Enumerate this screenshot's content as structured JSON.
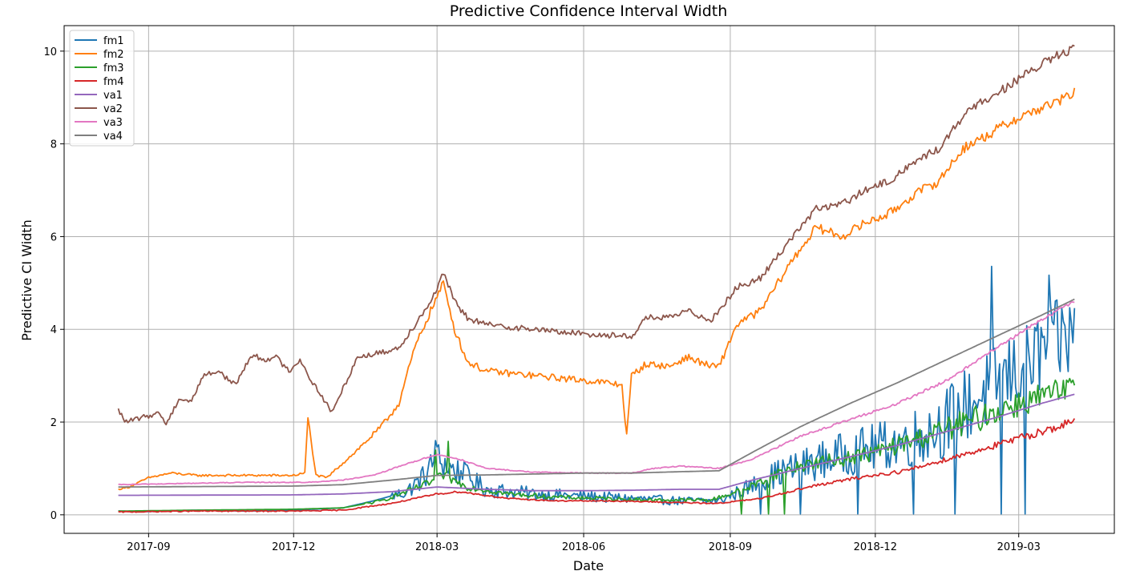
{
  "chart_data": {
    "type": "line",
    "title": "Predictive Confidence Interval Width",
    "xlabel": "Date",
    "ylabel": "Predictive CI Width",
    "x_range": [
      "2017-07-10",
      "2019-04-30"
    ],
    "ylim": [
      -0.4,
      10.55
    ],
    "x_ticks": [
      "2017-09",
      "2017-12",
      "2018-03",
      "2018-06",
      "2018-09",
      "2018-12",
      "2019-03"
    ],
    "y_ticks": [
      0,
      2,
      4,
      6,
      8,
      10
    ],
    "grid": true,
    "legend_position": "top-left",
    "colors": {
      "fm1": "#1f77b4",
      "fm2": "#ff7f0e",
      "fm3": "#2ca02c",
      "fm4": "#d62728",
      "va1": "#9467bd",
      "va2": "#8c564b",
      "va3": "#e377c2",
      "va4": "#7f7f7f"
    },
    "series": [
      {
        "name": "fm1",
        "x": [
          "2017-08-13",
          "2017-09-01",
          "2017-10-01",
          "2017-11-01",
          "2017-12-01",
          "2018-01-01",
          "2018-01-20",
          "2018-02-10",
          "2018-02-20",
          "2018-03-01",
          "2018-03-10",
          "2018-03-20",
          "2018-04-01",
          "2018-05-01",
          "2018-06-01",
          "2018-07-01",
          "2018-08-01",
          "2018-08-25",
          "2018-09-10",
          "2018-10-01",
          "2018-10-20",
          "2018-11-10",
          "2018-12-01",
          "2018-12-20",
          "2019-01-10",
          "2019-01-25",
          "2019-02-10",
          "2019-02-22",
          "2019-03-05",
          "2019-03-15",
          "2019-03-25",
          "2019-04-05"
        ],
        "values": [
          0.08,
          0.07,
          0.1,
          0.08,
          0.1,
          0.15,
          0.3,
          0.5,
          0.8,
          1.2,
          1.0,
          0.8,
          0.55,
          0.45,
          0.4,
          0.35,
          0.3,
          0.3,
          0.55,
          0.9,
          1.1,
          1.3,
          1.45,
          1.6,
          1.9,
          2.3,
          2.7,
          3.0,
          3.2,
          3.5,
          3.7,
          3.9
        ],
        "noise": 0.6,
        "noise_from": "2018-02-01",
        "dips": [
          "2018-09-20",
          "2018-10-15",
          "2018-11-20",
          "2018-12-25",
          "2019-01-20",
          "2019-02-18",
          "2019-03-05"
        ],
        "spikes": [
          "2018-02-28",
          "2018-03-18",
          "2019-02-12",
          "2019-03-20"
        ]
      },
      {
        "name": "fm2",
        "x": [
          "2017-08-13",
          "2017-08-20",
          "2017-09-01",
          "2017-09-15",
          "2017-10-01",
          "2017-11-01",
          "2017-12-01",
          "2017-12-08",
          "2017-12-10",
          "2017-12-15",
          "2017-12-22",
          "2017-12-25",
          "2018-01-10",
          "2018-01-25",
          "2018-02-05",
          "2018-02-15",
          "2018-02-25",
          "2018-03-05",
          "2018-03-12",
          "2018-03-20",
          "2018-04-01",
          "2018-05-01",
          "2018-06-01",
          "2018-06-15",
          "2018-06-25",
          "2018-06-28",
          "2018-07-01",
          "2018-07-10",
          "2018-07-25",
          "2018-08-05",
          "2018-08-20",
          "2018-08-25",
          "2018-09-05",
          "2018-09-20",
          "2018-10-10",
          "2018-10-25",
          "2018-11-10",
          "2018-11-25",
          "2018-12-10",
          "2018-12-25",
          "2019-01-10",
          "2019-01-25",
          "2019-02-10",
          "2019-02-25",
          "2019-03-10",
          "2019-03-25",
          "2019-04-05"
        ],
        "values": [
          0.55,
          0.6,
          0.8,
          0.9,
          0.85,
          0.85,
          0.85,
          0.9,
          2.1,
          0.85,
          0.8,
          0.9,
          1.4,
          1.9,
          2.4,
          3.6,
          4.4,
          5.0,
          4.0,
          3.3,
          3.1,
          3.0,
          2.9,
          2.85,
          2.8,
          1.7,
          3.0,
          3.25,
          3.2,
          3.4,
          3.2,
          3.2,
          4.1,
          4.4,
          5.5,
          6.2,
          6.0,
          6.3,
          6.5,
          6.9,
          7.2,
          7.9,
          8.2,
          8.5,
          8.7,
          8.9,
          9.1
        ],
        "noise": 0.05,
        "noise_from": "2017-08-13"
      },
      {
        "name": "fm3",
        "x": [
          "2017-08-13",
          "2017-10-01",
          "2017-12-01",
          "2018-01-01",
          "2018-01-25",
          "2018-02-10",
          "2018-02-25",
          "2018-03-05",
          "2018-03-20",
          "2018-04-15",
          "2018-05-15",
          "2018-06-15",
          "2018-07-15",
          "2018-08-20",
          "2018-09-10",
          "2018-10-01",
          "2018-10-20",
          "2018-11-10",
          "2018-12-01",
          "2018-12-20",
          "2019-01-10",
          "2019-02-01",
          "2019-02-20",
          "2019-03-10",
          "2019-04-05"
        ],
        "values": [
          0.08,
          0.1,
          0.12,
          0.15,
          0.3,
          0.5,
          0.7,
          0.85,
          0.6,
          0.45,
          0.38,
          0.35,
          0.32,
          0.32,
          0.55,
          0.9,
          1.1,
          1.2,
          1.35,
          1.55,
          1.8,
          2.05,
          2.3,
          2.5,
          2.7
        ],
        "noise": 0.22,
        "noise_from": "2018-01-15",
        "dips": [
          "2018-09-08",
          "2018-09-25",
          "2018-10-05"
        ],
        "spikes": [
          "2018-02-28",
          "2018-03-08"
        ]
      },
      {
        "name": "fm4",
        "x": [
          "2017-08-13",
          "2017-10-01",
          "2017-12-01",
          "2018-01-01",
          "2018-02-01",
          "2018-03-01",
          "2018-03-15",
          "2018-04-15",
          "2018-05-15",
          "2018-06-15",
          "2018-07-15",
          "2018-08-15",
          "2018-08-25",
          "2018-09-20",
          "2018-10-20",
          "2018-11-20",
          "2018-12-20",
          "2019-01-20",
          "2019-02-20",
          "2019-03-20",
          "2019-04-05"
        ],
        "values": [
          0.06,
          0.08,
          0.08,
          0.1,
          0.25,
          0.45,
          0.5,
          0.35,
          0.3,
          0.3,
          0.28,
          0.25,
          0.25,
          0.35,
          0.6,
          0.8,
          0.95,
          1.25,
          1.55,
          1.85,
          2.0
        ],
        "noise": 0.08,
        "noise_from": "2017-08-13"
      },
      {
        "name": "va1",
        "x": [
          "2017-08-13",
          "2017-12-01",
          "2018-01-01",
          "2018-02-01",
          "2018-03-01",
          "2018-04-01",
          "2018-05-01",
          "2018-06-01",
          "2018-07-01",
          "2018-08-01",
          "2018-08-25",
          "2018-09-15",
          "2018-10-15",
          "2018-11-15",
          "2018-12-15",
          "2019-01-15",
          "2019-02-15",
          "2019-03-15",
          "2019-04-05"
        ],
        "values": [
          0.42,
          0.43,
          0.45,
          0.5,
          0.6,
          0.55,
          0.52,
          0.52,
          0.53,
          0.55,
          0.55,
          0.75,
          1.0,
          1.25,
          1.5,
          1.8,
          2.1,
          2.4,
          2.6
        ],
        "noise": 0.0,
        "noise_from": "2017-08-13"
      },
      {
        "name": "va2",
        "x": [
          "2017-08-13",
          "2017-08-18",
          "2017-08-28",
          "2017-09-08",
          "2017-09-12",
          "2017-09-20",
          "2017-09-28",
          "2017-10-05",
          "2017-10-15",
          "2017-10-25",
          "2017-11-05",
          "2017-11-12",
          "2017-11-20",
          "2017-11-28",
          "2017-12-05",
          "2017-12-12",
          "2017-12-18",
          "2017-12-25",
          "2018-01-10",
          "2018-01-25",
          "2018-02-05",
          "2018-02-15",
          "2018-02-25",
          "2018-03-05",
          "2018-03-12",
          "2018-03-20",
          "2018-04-01",
          "2018-05-01",
          "2018-06-01",
          "2018-07-01",
          "2018-07-10",
          "2018-07-25",
          "2018-08-05",
          "2018-08-20",
          "2018-09-05",
          "2018-09-20",
          "2018-10-10",
          "2018-10-25",
          "2018-11-10",
          "2018-11-25",
          "2018-12-10",
          "2018-12-25",
          "2019-01-10",
          "2019-01-25",
          "2019-02-10",
          "2019-02-25",
          "2019-03-10",
          "2019-03-25",
          "2019-04-05"
        ],
        "values": [
          2.25,
          2.0,
          2.1,
          2.2,
          1.95,
          2.5,
          2.45,
          3.0,
          3.1,
          2.8,
          3.45,
          3.35,
          3.4,
          3.1,
          3.35,
          2.9,
          2.6,
          2.2,
          3.4,
          3.5,
          3.6,
          4.1,
          4.6,
          5.2,
          4.6,
          4.25,
          4.1,
          4.0,
          3.9,
          3.85,
          4.25,
          4.25,
          4.4,
          4.2,
          4.9,
          5.1,
          6.0,
          6.6,
          6.7,
          7.0,
          7.2,
          7.6,
          7.9,
          8.6,
          9.0,
          9.3,
          9.6,
          9.9,
          10.05
        ],
        "noise": 0.04,
        "noise_from": "2017-08-13"
      },
      {
        "name": "va3",
        "x": [
          "2017-08-13",
          "2017-11-01",
          "2017-12-10",
          "2018-01-01",
          "2018-01-20",
          "2018-02-10",
          "2018-03-01",
          "2018-03-15",
          "2018-04-01",
          "2018-05-01",
          "2018-06-01",
          "2018-07-01",
          "2018-07-15",
          "2018-08-01",
          "2018-08-25",
          "2018-09-15",
          "2018-10-15",
          "2018-11-15",
          "2018-12-15",
          "2019-01-15",
          "2019-02-15",
          "2019-03-15",
          "2019-04-05"
        ],
        "values": [
          0.65,
          0.7,
          0.7,
          0.75,
          0.85,
          1.1,
          1.3,
          1.2,
          1.0,
          0.92,
          0.9,
          0.9,
          1.0,
          1.05,
          1.0,
          1.2,
          1.7,
          2.05,
          2.4,
          2.9,
          3.6,
          4.2,
          4.6
        ],
        "noise": 0.02,
        "noise_from": "2017-08-13"
      },
      {
        "name": "va4",
        "x": [
          "2017-08-13",
          "2017-12-01",
          "2018-01-01",
          "2018-02-01",
          "2018-03-01",
          "2018-04-01",
          "2018-05-01",
          "2018-06-01",
          "2018-07-01",
          "2018-08-01",
          "2018-08-25",
          "2018-09-15",
          "2018-10-15",
          "2018-11-15",
          "2018-12-15",
          "2019-01-15",
          "2019-02-15",
          "2019-03-15",
          "2019-04-05"
        ],
        "values": [
          0.6,
          0.62,
          0.65,
          0.75,
          0.85,
          0.86,
          0.88,
          0.9,
          0.9,
          0.93,
          0.95,
          1.35,
          1.9,
          2.4,
          2.85,
          3.35,
          3.85,
          4.3,
          4.65
        ],
        "noise": 0.0,
        "noise_from": "2017-08-13"
      }
    ]
  }
}
